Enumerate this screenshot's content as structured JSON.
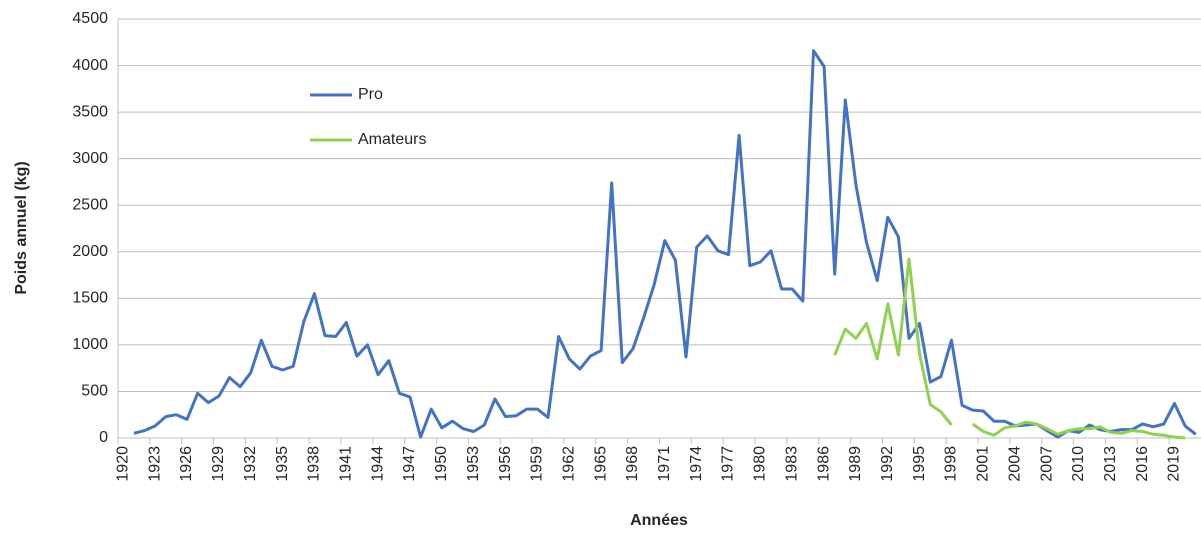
{
  "chart_data": {
    "type": "line",
    "x_label": "Années",
    "y_label": "Poids annuel (kg)",
    "categories": [
      "1920",
      null,
      null,
      "1923",
      null,
      null,
      "1926",
      null,
      null,
      "1929",
      null,
      null,
      "1932",
      null,
      null,
      "1935",
      null,
      null,
      "1938",
      null,
      null,
      "1941",
      null,
      null,
      "1944",
      null,
      null,
      "1947",
      null,
      null,
      "1950",
      null,
      null,
      "1953",
      null,
      null,
      "1956",
      null,
      null,
      "1959",
      null,
      null,
      "1962",
      null,
      null,
      "1965",
      null,
      null,
      "1968",
      null,
      null,
      "1971",
      null,
      null,
      "1974",
      null,
      null,
      "1977",
      null,
      null,
      "1980",
      null,
      null,
      "1983",
      null,
      null,
      "1986",
      null,
      null,
      "1989",
      null,
      null,
      "1992",
      null,
      null,
      "1995",
      null,
      null,
      "1998",
      null,
      null,
      "2001",
      null,
      null,
      "2004",
      null,
      null,
      "2007",
      null,
      null,
      "2010",
      null,
      null,
      "2013",
      null,
      null,
      "2016",
      null,
      null,
      "2019",
      null,
      null
    ],
    "series": [
      {
        "name": "Pro",
        "color": "#4472c4",
        "values": [
          null,
          50,
          80,
          130,
          230,
          250,
          200,
          480,
          380,
          450,
          650,
          550,
          700,
          1050,
          770,
          730,
          770,
          1250,
          1550,
          1100,
          1090,
          1240,
          880,
          1000,
          680,
          830,
          480,
          440,
          10,
          310,
          110,
          180,
          100,
          70,
          140,
          420,
          230,
          240,
          310,
          310,
          220,
          1090,
          850,
          740,
          880,
          940,
          2740,
          810,
          960,
          1290,
          1650,
          2120,
          1910,
          870,
          2050,
          2170,
          2010,
          1970,
          3250,
          1850,
          1890,
          2010,
          1600,
          1600,
          1470,
          4160,
          3990,
          1760,
          3630,
          2720,
          2100,
          1690,
          2370,
          2160,
          1070,
          1230,
          600,
          660,
          1050,
          350,
          300,
          290,
          180,
          180,
          130,
          140,
          150,
          80,
          10,
          80,
          60,
          140,
          90,
          70,
          90,
          90,
          150,
          120,
          150,
          370,
          130,
          40
        ]
      },
      {
        "name": "Amateurs",
        "color": "#92d050",
        "values": [
          null,
          null,
          null,
          null,
          null,
          null,
          null,
          null,
          null,
          null,
          null,
          null,
          null,
          null,
          null,
          null,
          null,
          null,
          null,
          null,
          null,
          null,
          null,
          null,
          null,
          null,
          null,
          null,
          null,
          null,
          null,
          null,
          null,
          null,
          null,
          null,
          null,
          null,
          null,
          null,
          null,
          null,
          null,
          null,
          null,
          null,
          null,
          null,
          null,
          null,
          null,
          null,
          null,
          null,
          null,
          null,
          null,
          null,
          null,
          null,
          null,
          null,
          null,
          null,
          null,
          null,
          null,
          890,
          1170,
          1070,
          1230,
          850,
          1440,
          890,
          1920,
          900,
          360,
          280,
          140,
          null,
          150,
          70,
          30,
          110,
          130,
          170,
          150,
          100,
          40,
          80,
          100,
          100,
          120,
          60,
          50,
          80,
          70,
          40,
          30,
          10,
          0,
          null
        ]
      }
    ],
    "ylim": [
      0,
      4500
    ],
    "yticks": [
      0,
      500,
      1000,
      1500,
      2000,
      2500,
      3000,
      3500,
      4000,
      4500
    ],
    "grid": true,
    "legend": "upper left"
  }
}
